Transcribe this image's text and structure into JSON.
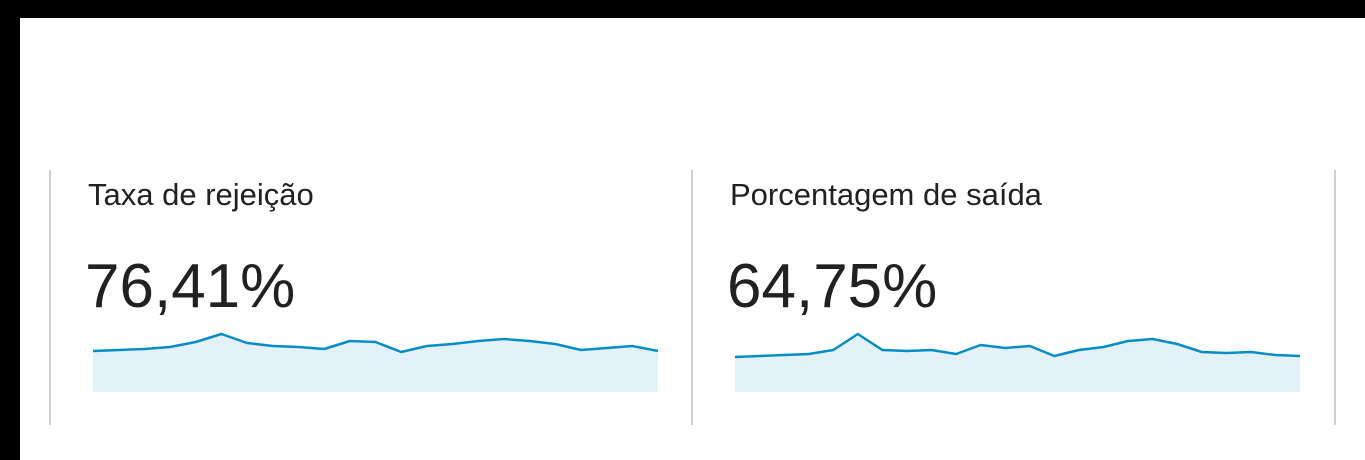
{
  "cards": [
    {
      "title": "Taxa de rejeição",
      "value": "76,41%",
      "sparkline": {
        "type": "line",
        "color": "#058dc7",
        "values": [
          75.6,
          75.8,
          76.0,
          76.4,
          77.4,
          79.0,
          77.2,
          76.6,
          76.4,
          76.0,
          77.6,
          77.4,
          75.4,
          76.6,
          77.0,
          77.6,
          78.0,
          77.6,
          77.0,
          75.8,
          76.2,
          76.6,
          75.6
        ]
      }
    },
    {
      "title": "Porcentagem de saída",
      "value": "64,75%",
      "sparkline": {
        "type": "line",
        "color": "#058dc7",
        "values": [
          63.8,
          64.0,
          64.2,
          64.4,
          65.2,
          68.4,
          65.2,
          65.0,
          65.2,
          64.4,
          66.2,
          65.6,
          66.0,
          64.0,
          65.2,
          65.8,
          67.0,
          67.4,
          66.4,
          64.8,
          64.6,
          64.8,
          64.2,
          64.0
        ]
      }
    }
  ]
}
